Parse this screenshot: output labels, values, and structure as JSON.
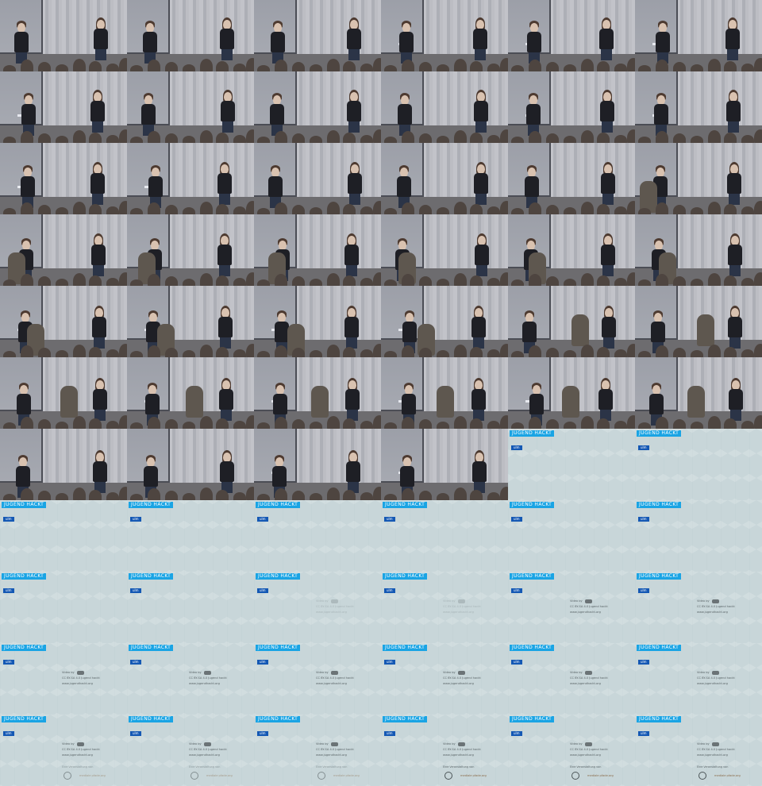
{
  "sheet": {
    "columns": 6,
    "rows": 11,
    "photo_frames": 40,
    "slide_frames": 26
  },
  "slide": {
    "brand_word": "JUGEND HACKT",
    "brand_sub": "ulm",
    "credits_line1": "Video by",
    "credits_line2": "CC BY-SA 4.0 Jugend hackt",
    "credits_line3": "www.jugendhackt.org",
    "sponsor_label": "Eine Veranstaltung von",
    "sponsor_logo_2": "mediale pfade.org"
  },
  "colors": {
    "brand_blue": "#1aa4e4",
    "brand_dark_blue": "#1458b4",
    "slide_background": "#c8d6d9",
    "stage_shirt": "#1e1f25"
  }
}
